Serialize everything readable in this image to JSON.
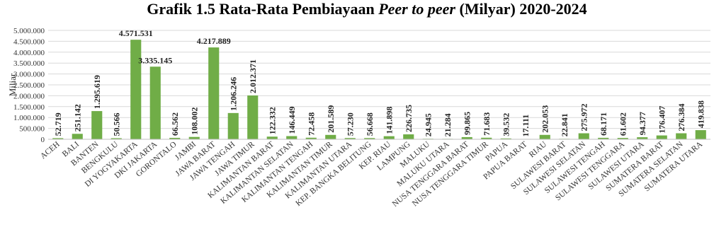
{
  "chart_data": {
    "type": "bar",
    "title_parts": [
      {
        "text": "Grafik 1.5 Rata-Rata Pembiayaan ",
        "italic": false
      },
      {
        "text": "Peer to peer",
        "italic": true
      },
      {
        "text": " (Milyar) 2020-2024",
        "italic": false
      }
    ],
    "ylabel": "Miliar",
    "ylim": [
      0,
      5000000
    ],
    "yticks": [
      0,
      500000,
      1000000,
      1500000,
      2000000,
      2500000,
      3000000,
      3500000,
      4000000,
      4500000,
      5000000
    ],
    "ytick_labels": [
      "0",
      "500.000",
      "1.000.000",
      "1.500.000",
      "2.000.000",
      "2.500.000",
      "3.000.000",
      "3.500.000",
      "4.000.000",
      "4.500.000",
      "5.000.000"
    ],
    "grid": true,
    "bar_color": "#70ad47",
    "categories": [
      "ACEH",
      "BALI",
      "BANTEN",
      "BENGKULU",
      "DI YOGYAKARTA",
      "DKI JAKARTA",
      "GORONTALO",
      "JAMBI",
      "JAWA BARAT",
      "JAWA TENGAH",
      "JAWA TIMUR",
      "KALIMANTAN BARAT",
      "KALIMANTAN SELATAN",
      "KALIMANTAN TENGAH",
      "KALIMANTAN TIMUR",
      "KALIMANTAN UTARA",
      "KEP. BANGKA BELITUNG",
      "KEP. RIAU",
      "LAMPUNG",
      "MALUKU",
      "MALUKU UTARA",
      "NUSA TENGGARA BARAT",
      "NUSA TENGGARA TIMUR",
      "PAPUA",
      "PAPUA BARAT",
      "RIAU",
      "SULAWESI BARAT",
      "SULAWESI SELATAN",
      "SULAWESI TENGAH",
      "SULAWESI TENGGARA",
      "SULAWESI UTARA",
      "SUMATERA BARAT",
      "SUMATERA SELATAN",
      "SUMATERA UTARA"
    ],
    "values": [
      52719,
      251142,
      1295619,
      50566,
      4571531,
      3335145,
      66562,
      108002,
      4217889,
      1206246,
      2012371,
      122332,
      146449,
      72458,
      201589,
      57230,
      56668,
      141898,
      226735,
      24945,
      21284,
      99865,
      71683,
      39532,
      17111,
      202053,
      22841,
      275972,
      68171,
      61602,
      94377,
      176407,
      276384,
      419838
    ],
    "data_labels": [
      "52.719",
      "251.142",
      "1.295.619",
      "50.566",
      "4.571.531",
      "3.335.145",
      "66.562",
      "108.002",
      "4.217.889",
      "1.206.246",
      "2.012.371",
      "122.332",
      "146.449",
      "72.458",
      "201.589",
      "57.230",
      "56.668",
      "141.898",
      "226.735",
      "24.945",
      "21.284",
      "99.865",
      "71.683",
      "39.532",
      "17.111",
      "202.053",
      "22.841",
      "275.972",
      "68.171",
      "61.602",
      "94.377",
      "176.407",
      "276.384",
      "419.838"
    ]
  }
}
